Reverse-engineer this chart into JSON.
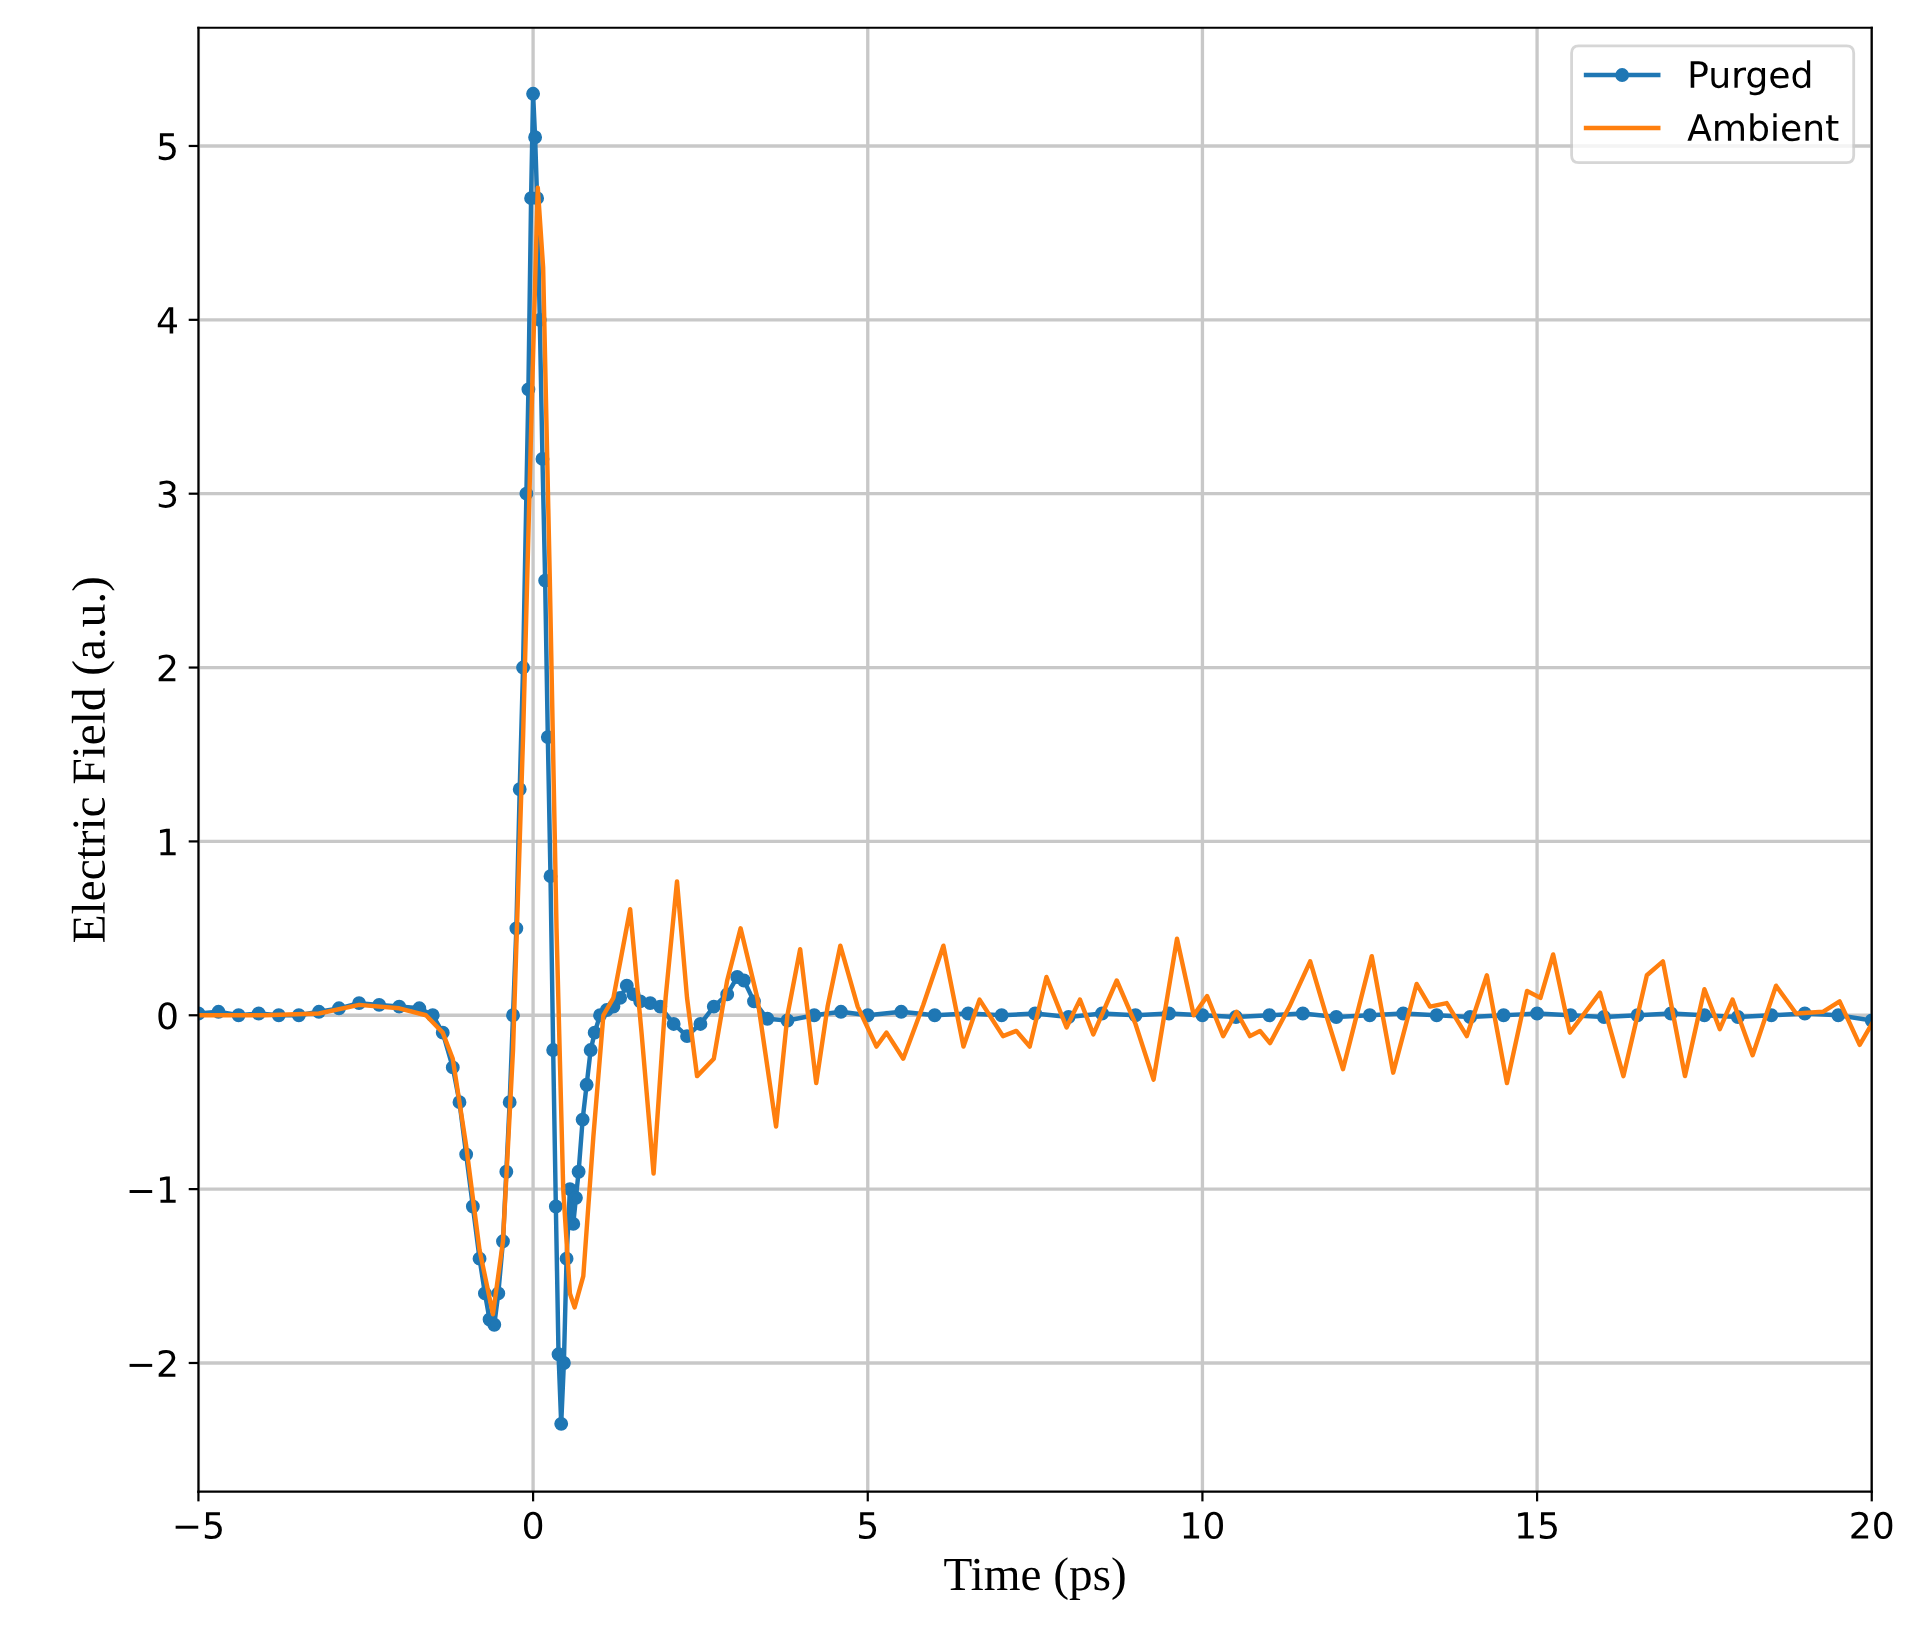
{
  "chart_data": {
    "type": "line",
    "xlabel": "Time (ps)",
    "ylabel": "Electric Field (a.u.)",
    "xlim": [
      -5,
      20
    ],
    "ylim": [
      -2.74,
      5.68
    ],
    "xticks": [
      -5,
      0,
      5,
      10,
      15,
      20
    ],
    "yticks": [
      -2,
      -1,
      0,
      1,
      2,
      3,
      4,
      5
    ],
    "grid": true,
    "legend": "top right",
    "series": [
      {
        "name": "Purged",
        "color": "#1f77b4",
        "marker": "circle",
        "x": [
          -5,
          -4.7,
          -4.4,
          -4.1,
          -3.8,
          -3.5,
          -3.2,
          -2.9,
          -2.6,
          -2.3,
          -2.0,
          -1.7,
          -1.5,
          -1.35,
          -1.2,
          -1.1,
          -1.0,
          -0.9,
          -0.8,
          -0.72,
          -0.65,
          -0.58,
          -0.52,
          -0.45,
          -0.4,
          -0.35,
          -0.3,
          -0.25,
          -0.2,
          -0.15,
          -0.1,
          -0.07,
          -0.03,
          0.0,
          0.03,
          0.06,
          0.1,
          0.14,
          0.18,
          0.22,
          0.26,
          0.3,
          0.34,
          0.38,
          0.42,
          0.46,
          0.5,
          0.55,
          0.6,
          0.64,
          0.68,
          0.74,
          0.8,
          0.86,
          0.92,
          1.0,
          1.1,
          1.2,
          1.3,
          1.4,
          1.5,
          1.6,
          1.75,
          1.9,
          2.1,
          2.3,
          2.5,
          2.7,
          2.9,
          3.05,
          3.15,
          3.3,
          3.5,
          3.8,
          4.2,
          4.6,
          5.0,
          5.5,
          6.0,
          6.5,
          7.0,
          7.5,
          8.0,
          8.5,
          9.0,
          9.5,
          10.0,
          10.5,
          11.0,
          11.5,
          12.0,
          12.5,
          13.0,
          13.5,
          14.0,
          14.5,
          15.0,
          15.5,
          16.0,
          16.5,
          17.0,
          17.5,
          18.0,
          18.5,
          19.0,
          19.5,
          20.0
        ],
        "values": [
          0.01,
          0.02,
          0.0,
          0.01,
          0.0,
          0.0,
          0.02,
          0.04,
          0.07,
          0.06,
          0.05,
          0.04,
          0.0,
          -0.1,
          -0.3,
          -0.5,
          -0.8,
          -1.1,
          -1.4,
          -1.6,
          -1.75,
          -1.78,
          -1.6,
          -1.3,
          -0.9,
          -0.5,
          0.0,
          0.5,
          1.3,
          2.0,
          3.0,
          3.6,
          4.7,
          5.3,
          5.05,
          4.7,
          4.0,
          3.2,
          2.5,
          1.6,
          0.8,
          -0.2,
          -1.1,
          -1.95,
          -2.35,
          -2.0,
          -1.4,
          -1.0,
          -1.2,
          -1.05,
          -0.9,
          -0.6,
          -0.4,
          -0.2,
          -0.1,
          0.0,
          0.03,
          0.05,
          0.1,
          0.17,
          0.12,
          0.08,
          0.07,
          0.05,
          -0.05,
          -0.12,
          -0.05,
          0.05,
          0.12,
          0.22,
          0.2,
          0.08,
          -0.02,
          -0.03,
          0.0,
          0.02,
          0.0,
          0.02,
          0.0,
          0.01,
          0.0,
          0.01,
          -0.01,
          0.01,
          0.0,
          0.01,
          0.0,
          -0.01,
          0.0,
          0.01,
          -0.01,
          0.0,
          0.01,
          0.0,
          -0.01,
          0.0,
          0.01,
          0.0,
          -0.01,
          0.0,
          0.01,
          0.0,
          -0.01,
          0.0,
          0.01,
          0.0,
          -0.03
        ]
      },
      {
        "name": "Ambient",
        "color": "#ff7f0e",
        "marker": "none",
        "x": [
          -5,
          -4,
          -3.2,
          -2.6,
          -2.0,
          -1.6,
          -1.35,
          -1.2,
          -1.0,
          -0.8,
          -0.6,
          -0.45,
          -0.3,
          -0.15,
          0.0,
          0.07,
          0.15,
          0.25,
          0.35,
          0.45,
          0.55,
          0.62,
          0.75,
          0.9,
          1.05,
          1.2,
          1.45,
          1.62,
          1.8,
          1.98,
          2.15,
          2.3,
          2.45,
          2.7,
          2.9,
          3.1,
          3.35,
          3.63,
          3.8,
          3.99,
          4.23,
          4.4,
          4.59,
          4.85,
          5.13,
          5.28,
          5.53,
          5.83,
          6.13,
          6.43,
          6.67,
          7.02,
          7.22,
          7.42,
          7.67,
          7.97,
          8.17,
          8.37,
          8.72,
          9.0,
          9.27,
          9.62,
          9.87,
          10.07,
          10.31,
          10.51,
          10.71,
          10.86,
          11.01,
          11.3,
          11.61,
          11.85,
          12.1,
          12.53,
          12.85,
          13.2,
          13.4,
          13.65,
          13.95,
          14.25,
          14.55,
          14.85,
          15.05,
          15.24,
          15.49,
          15.94,
          16.29,
          16.64,
          16.88,
          17.21,
          17.5,
          17.73,
          17.92,
          18.22,
          18.57,
          18.87,
          19.27,
          19.52,
          19.82,
          20.0
        ],
        "values": [
          0.0,
          0.0,
          0.01,
          0.06,
          0.04,
          0.0,
          -0.1,
          -0.25,
          -0.75,
          -1.35,
          -1.72,
          -1.3,
          -0.2,
          1.6,
          3.8,
          4.76,
          4.3,
          2.5,
          0.5,
          -1.0,
          -1.6,
          -1.68,
          -1.5,
          -0.7,
          0.0,
          0.1,
          0.61,
          -0.1,
          -0.91,
          0.1,
          0.77,
          0.1,
          -0.35,
          -0.25,
          0.2,
          0.5,
          0.1,
          -0.64,
          0.0,
          0.38,
          -0.39,
          0.05,
          0.4,
          0.05,
          -0.18,
          -0.1,
          -0.25,
          0.06,
          0.4,
          -0.18,
          0.09,
          -0.12,
          -0.09,
          -0.18,
          0.22,
          -0.07,
          0.09,
          -0.11,
          0.2,
          -0.05,
          -0.37,
          0.44,
          0.0,
          0.11,
          -0.12,
          0.02,
          -0.12,
          -0.09,
          -0.16,
          0.05,
          0.31,
          0.0,
          -0.31,
          0.34,
          -0.33,
          0.18,
          0.05,
          0.07,
          -0.12,
          0.23,
          -0.39,
          0.14,
          0.1,
          0.35,
          -0.1,
          0.13,
          -0.35,
          0.23,
          0.31,
          -0.35,
          0.15,
          -0.08,
          0.09,
          -0.23,
          0.17,
          0.01,
          0.02,
          0.08,
          -0.17,
          -0.05
        ]
      }
    ]
  }
}
